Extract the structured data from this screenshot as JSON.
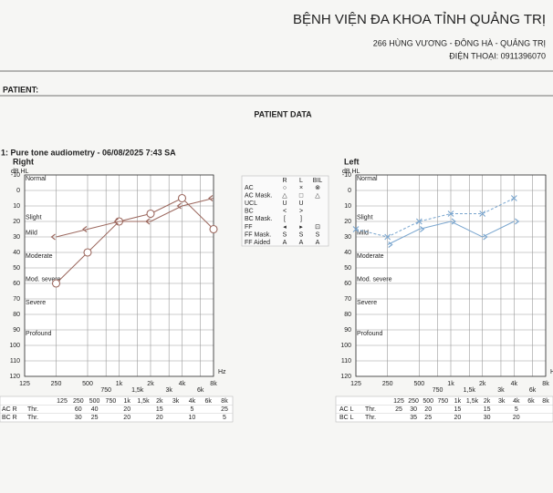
{
  "header": {
    "hospital": "BỆNH VIỆN ĐA KHOA TỈNH QUẢNG TRỊ",
    "address": "266 HÙNG VƯƠNG - ĐÔNG HÀ - QUẢNG TRỊ",
    "phone": "ĐIỆN THOẠI: 0911396070"
  },
  "patient_label": "PATIENT:",
  "section_title": "PATIENT DATA",
  "test_title": "1: Pure tone audiometry - 06/08/2025 7:43 SA",
  "threshold_label": "Thr.",
  "hearing_levels": [
    {
      "label": "Normal",
      "value": -10
    },
    {
      "label": "Slight",
      "value": 15
    },
    {
      "label": "Mild",
      "value": 25
    },
    {
      "label": "Moderate",
      "value": 40
    },
    {
      "label": "Mod. severe",
      "value": 55
    },
    {
      "label": "Severe",
      "value": 70
    },
    {
      "label": "Profound",
      "value": 90
    }
  ],
  "legend_table": {
    "columns": [
      "R",
      "L",
      "BIL"
    ],
    "rows": [
      {
        "label": "AC",
        "symbols": [
          "○",
          "×",
          "⊗"
        ]
      },
      {
        "label": "AC  Mask.",
        "symbols": [
          "△",
          "□",
          "△"
        ]
      },
      {
        "label": "UCL",
        "symbols": [
          "U",
          "U",
          null
        ]
      },
      {
        "label": "BC",
        "symbols": [
          "<",
          ">",
          null
        ]
      },
      {
        "label": "BC  Mask.",
        "symbols": [
          "[",
          "]",
          null
        ]
      },
      {
        "label": "FF",
        "symbols": [
          "◂",
          "▸",
          "⊡"
        ]
      },
      {
        "label": "FF  Mask.",
        "symbols": [
          "S",
          "S",
          "S"
        ]
      },
      {
        "label": "FF  Aided",
        "symbols": [
          "A",
          "A",
          "A"
        ]
      }
    ]
  },
  "chart_data": [
    {
      "type": "line",
      "title": "Right",
      "y_label": "dB HL",
      "x_unit": "Hz",
      "log_x": true,
      "y_inverted": true,
      "grid": true,
      "xlim": [
        125,
        8000
      ],
      "ylim": [
        -10,
        120
      ],
      "xticks": [
        125,
        250,
        500,
        750,
        {
          "value": 1000,
          "label": "1k"
        },
        {
          "value": 1500,
          "label": "1,5k"
        },
        {
          "value": 2000,
          "label": "2k"
        },
        {
          "value": 3000,
          "label": "3k"
        },
        {
          "value": 4000,
          "label": "4k"
        },
        {
          "value": 6000,
          "label": "6k"
        },
        {
          "value": 8000,
          "label": "8k"
        }
      ],
      "yticks": [
        -10,
        0,
        10,
        20,
        30,
        40,
        50,
        60,
        70,
        80,
        90,
        100,
        110,
        120
      ],
      "series": [
        {
          "name": "AC R",
          "color": "#9b675d",
          "marker": "circle",
          "dashed": false,
          "x": [
            250,
            500,
            1000,
            2000,
            4000,
            8000
          ],
          "values": [
            60,
            40,
            20,
            15,
            5,
            25
          ]
        },
        {
          "name": "BC R",
          "color": "#9b675d",
          "marker": "bracket-left",
          "dashed": false,
          "x": [
            250,
            500,
            1000,
            2000,
            4000,
            8000
          ],
          "values": [
            30,
            25,
            20,
            20,
            10,
            5
          ]
        }
      ]
    },
    {
      "type": "line",
      "title": "Left",
      "y_label": "dB HL",
      "x_unit": "Hz",
      "log_x": true,
      "y_inverted": true,
      "grid": true,
      "xlim": [
        125,
        8000
      ],
      "ylim": [
        -10,
        120
      ],
      "xticks": [
        125,
        250,
        500,
        750,
        {
          "value": 1000,
          "label": "1k"
        },
        {
          "value": 1500,
          "label": "1,5k"
        },
        {
          "value": 2000,
          "label": "2k"
        },
        {
          "value": 3000,
          "label": "3k"
        },
        {
          "value": 4000,
          "label": "4k"
        },
        {
          "value": 6000,
          "label": "6k"
        },
        {
          "value": 8000,
          "label": "8k"
        }
      ],
      "yticks": [
        -10,
        0,
        10,
        20,
        30,
        40,
        50,
        60,
        70,
        80,
        90,
        100,
        110,
        120
      ],
      "series": [
        {
          "name": "AC L",
          "color": "#7aa6cf",
          "marker": "cross",
          "dashed": true,
          "x": [
            125,
            250,
            500,
            1000,
            2000,
            4000
          ],
          "values": [
            25,
            30,
            20,
            15,
            15,
            5
          ]
        },
        {
          "name": "BC L",
          "color": "#7aa6cf",
          "marker": "bracket-right",
          "dashed": false,
          "x": [
            250,
            500,
            1000,
            2000,
            4000
          ],
          "values": [
            35,
            25,
            20,
            30,
            20
          ]
        }
      ]
    }
  ]
}
